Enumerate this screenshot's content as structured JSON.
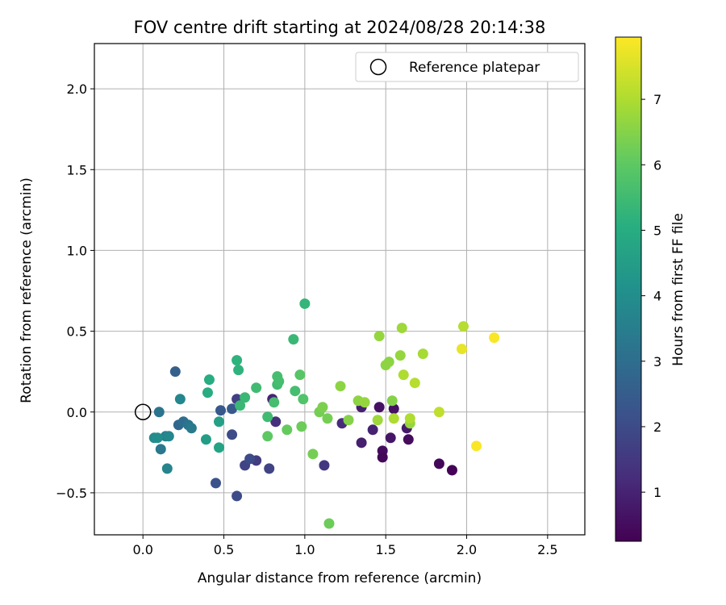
{
  "chart_data": {
    "type": "scatter",
    "title": "FOV centre drift starting at 2024/08/28 20:14:38",
    "xlabel": "Angular distance from reference (arcmin)",
    "ylabel": "Rotation from reference (arcmin)",
    "xlim": [
      -0.3,
      2.73
    ],
    "ylim": [
      -0.76,
      2.28
    ],
    "xticks": [
      0.0,
      0.5,
      1.0,
      1.5,
      2.0,
      2.5
    ],
    "xtick_labels": [
      "0.0",
      "0.5",
      "1.0",
      "1.5",
      "2.0",
      "2.5"
    ],
    "yticks": [
      -0.5,
      0.0,
      0.5,
      1.0,
      1.5,
      2.0
    ],
    "ytick_labels": [
      "−0.5",
      "0.0",
      "0.5",
      "1.0",
      "1.5",
      "2.0"
    ],
    "grid": true,
    "legend": {
      "position": "top-right",
      "label": "Reference platepar",
      "marker": "open-circle"
    },
    "reference_point": {
      "x": 0.0,
      "y": 0.0
    },
    "colorbar": {
      "label": "Hours from first FF file",
      "colormap": "viridis",
      "range": [
        0.25,
        7.95
      ],
      "ticks": [
        1,
        2,
        3,
        4,
        5,
        6,
        7
      ],
      "tick_labels": [
        "1",
        "2",
        "3",
        "4",
        "5",
        "6",
        "7"
      ]
    },
    "points": [
      {
        "x": 1.46,
        "y": 0.03,
        "h": 0.6
      },
      {
        "x": 1.48,
        "y": -0.24,
        "h": 0.5
      },
      {
        "x": 1.48,
        "y": -0.28,
        "h": 0.4
      },
      {
        "x": 1.53,
        "y": -0.16,
        "h": 0.7
      },
      {
        "x": 1.55,
        "y": 0.02,
        "h": 0.6
      },
      {
        "x": 1.63,
        "y": -0.1,
        "h": 0.8
      },
      {
        "x": 1.64,
        "y": -0.17,
        "h": 0.5
      },
      {
        "x": 1.83,
        "y": -0.32,
        "h": 0.4
      },
      {
        "x": 1.91,
        "y": -0.36,
        "h": 0.3
      },
      {
        "x": 1.35,
        "y": 0.03,
        "h": 0.9
      },
      {
        "x": 1.35,
        "y": -0.19,
        "h": 0.9
      },
      {
        "x": 1.42,
        "y": -0.11,
        "h": 1.0
      },
      {
        "x": 1.23,
        "y": -0.07,
        "h": 1.2
      },
      {
        "x": 0.8,
        "y": 0.08,
        "h": 1.0
      },
      {
        "x": 0.82,
        "y": -0.06,
        "h": 1.3
      },
      {
        "x": 1.12,
        "y": -0.33,
        "h": 1.5
      },
      {
        "x": 0.78,
        "y": -0.35,
        "h": 1.8
      },
      {
        "x": 0.7,
        "y": -0.3,
        "h": 1.6
      },
      {
        "x": 0.63,
        "y": -0.33,
        "h": 1.8
      },
      {
        "x": 0.66,
        "y": -0.29,
        "h": 2.0
      },
      {
        "x": 0.58,
        "y": 0.08,
        "h": 1.7
      },
      {
        "x": 0.55,
        "y": -0.14,
        "h": 2.0
      },
      {
        "x": 0.58,
        "y": -0.52,
        "h": 2.0
      },
      {
        "x": 0.45,
        "y": -0.44,
        "h": 2.2
      },
      {
        "x": 0.48,
        "y": 0.01,
        "h": 2.4
      },
      {
        "x": 0.55,
        "y": 0.02,
        "h": 2.4
      },
      {
        "x": 0.2,
        "y": 0.25,
        "h": 2.6
      },
      {
        "x": 0.1,
        "y": 0.0,
        "h": 3.2
      },
      {
        "x": 0.22,
        "y": -0.08,
        "h": 2.8
      },
      {
        "x": 0.25,
        "y": -0.06,
        "h": 3.0
      },
      {
        "x": 0.28,
        "y": -0.08,
        "h": 3.2
      },
      {
        "x": 0.3,
        "y": -0.1,
        "h": 3.4
      },
      {
        "x": 0.11,
        "y": -0.23,
        "h": 3.3
      },
      {
        "x": 0.14,
        "y": -0.15,
        "h": 3.6
      },
      {
        "x": 0.16,
        "y": -0.15,
        "h": 3.8
      },
      {
        "x": 0.07,
        "y": -0.16,
        "h": 3.9
      },
      {
        "x": 0.09,
        "y": -0.16,
        "h": 4.0
      },
      {
        "x": 0.15,
        "y": -0.35,
        "h": 3.7
      },
      {
        "x": 0.23,
        "y": 0.08,
        "h": 3.8
      },
      {
        "x": 0.39,
        "y": -0.17,
        "h": 4.5
      },
      {
        "x": 0.47,
        "y": -0.06,
        "h": 4.6
      },
      {
        "x": 0.47,
        "y": -0.22,
        "h": 4.7
      },
      {
        "x": 0.4,
        "y": 0.12,
        "h": 5.0
      },
      {
        "x": 0.41,
        "y": 0.2,
        "h": 5.0
      },
      {
        "x": 0.58,
        "y": 0.32,
        "h": 5.2
      },
      {
        "x": 0.59,
        "y": 0.26,
        "h": 5.2
      },
      {
        "x": 0.6,
        "y": 0.04,
        "h": 5.4
      },
      {
        "x": 0.63,
        "y": 0.09,
        "h": 5.4
      },
      {
        "x": 0.7,
        "y": 0.15,
        "h": 5.5
      },
      {
        "x": 0.77,
        "y": -0.03,
        "h": 5.5
      },
      {
        "x": 0.81,
        "y": 0.06,
        "h": 5.6
      },
      {
        "x": 0.83,
        "y": 0.17,
        "h": 5.5
      },
      {
        "x": 0.83,
        "y": 0.22,
        "h": 5.6
      },
      {
        "x": 0.84,
        "y": 0.19,
        "h": 5.6
      },
      {
        "x": 0.93,
        "y": 0.45,
        "h": 5.4
      },
      {
        "x": 0.94,
        "y": 0.13,
        "h": 5.6
      },
      {
        "x": 1.0,
        "y": 0.67,
        "h": 5.3
      },
      {
        "x": 0.99,
        "y": 0.08,
        "h": 5.8
      },
      {
        "x": 0.97,
        "y": 0.23,
        "h": 5.9
      },
      {
        "x": 0.77,
        "y": -0.15,
        "h": 6.0
      },
      {
        "x": 0.89,
        "y": -0.11,
        "h": 6.1
      },
      {
        "x": 0.98,
        "y": -0.09,
        "h": 6.2
      },
      {
        "x": 1.05,
        "y": -0.26,
        "h": 6.3
      },
      {
        "x": 1.09,
        "y": 0.0,
        "h": 6.3
      },
      {
        "x": 1.11,
        "y": 0.03,
        "h": 6.4
      },
      {
        "x": 1.14,
        "y": -0.04,
        "h": 6.3
      },
      {
        "x": 1.15,
        "y": -0.69,
        "h": 6.2
      },
      {
        "x": 1.22,
        "y": 0.16,
        "h": 6.6
      },
      {
        "x": 1.27,
        "y": -0.05,
        "h": 6.5
      },
      {
        "x": 1.33,
        "y": 0.07,
        "h": 6.6
      },
      {
        "x": 1.37,
        "y": 0.06,
        "h": 6.7
      },
      {
        "x": 1.45,
        "y": -0.05,
        "h": 6.8
      },
      {
        "x": 1.46,
        "y": 0.47,
        "h": 6.7
      },
      {
        "x": 1.5,
        "y": 0.29,
        "h": 6.6
      },
      {
        "x": 1.52,
        "y": 0.31,
        "h": 6.6
      },
      {
        "x": 1.54,
        "y": 0.07,
        "h": 6.5
      },
      {
        "x": 1.55,
        "y": -0.04,
        "h": 7.0
      },
      {
        "x": 1.59,
        "y": 0.35,
        "h": 6.7
      },
      {
        "x": 1.6,
        "y": 0.52,
        "h": 6.8
      },
      {
        "x": 1.61,
        "y": 0.23,
        "h": 7.0
      },
      {
        "x": 1.65,
        "y": -0.07,
        "h": 6.7
      },
      {
        "x": 1.65,
        "y": -0.04,
        "h": 7.0
      },
      {
        "x": 1.68,
        "y": 0.18,
        "h": 7.1
      },
      {
        "x": 1.73,
        "y": 0.36,
        "h": 6.9
      },
      {
        "x": 1.83,
        "y": 0.0,
        "h": 7.2
      },
      {
        "x": 1.98,
        "y": 0.53,
        "h": 7.1
      },
      {
        "x": 1.97,
        "y": 0.39,
        "h": 7.7
      },
      {
        "x": 2.06,
        "y": -0.21,
        "h": 7.9
      },
      {
        "x": 2.17,
        "y": 0.46,
        "h": 7.9
      }
    ]
  }
}
